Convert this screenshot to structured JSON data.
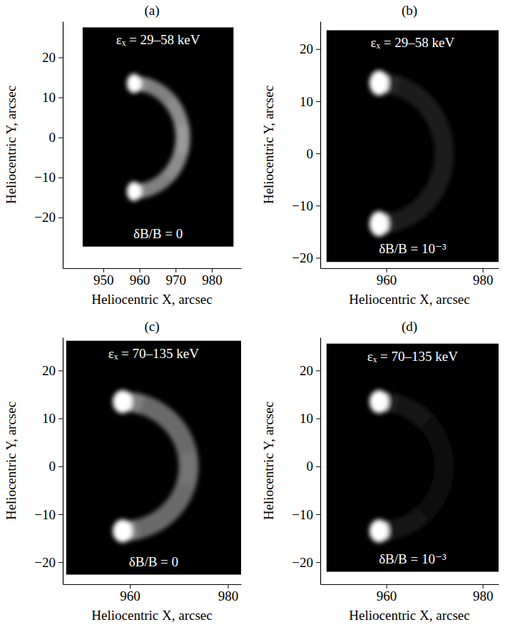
{
  "chart_data": [
    {
      "type": "image",
      "title": "(a)",
      "x_label": "Heliocentric X, arcsec",
      "y_label": "Heliocentric Y, arcsec",
      "annotations": [
        "εₓ = 29–58 keV",
        "δB/B = 0"
      ],
      "xlim": [
        938.8,
        988.1
      ],
      "xticks": [
        950,
        960,
        970,
        980
      ],
      "ylim": [
        -32.7,
        29.0
      ],
      "yticks": [
        -20,
        -10,
        0,
        10,
        20
      ],
      "extent": {
        "x": [
          944.3,
          986.0
        ],
        "y": [
          -27.3,
          27.5
        ]
      },
      "zlim": [
        0,
        1
      ],
      "loop": {
        "center_x": 958.5,
        "center_y": 0,
        "radius": 13.5,
        "width": 4
      },
      "profile": {
        "angle": [
          -90,
          -60,
          -30,
          0,
          30,
          60,
          90
        ],
        "brightness": [
          0.55,
          0.5,
          0.55,
          0.6,
          0.55,
          0.5,
          0.55
        ]
      },
      "sources": [
        {
          "x": 958.5,
          "y": 13.5,
          "brightness": 1
        },
        {
          "x": 958.5,
          "y": -13.5,
          "brightness": 1
        }
      ]
    },
    {
      "type": "image",
      "title": "(b)",
      "x_label": "Heliocentric X, arcsec",
      "y_label": "Heliocentric Y, arcsec",
      "annotations": [
        "εₓ = 29–58 keV",
        "δB/B = 10⁻³"
      ],
      "xlim": [
        946.3,
        983.3
      ],
      "xticks": [
        960,
        980
      ],
      "ylim": [
        -22.0,
        25.3
      ],
      "yticks": [
        -20,
        -10,
        0,
        10,
        20
      ],
      "extent": {
        "x": [
          947.6,
          983.3
        ],
        "y": [
          -20.8,
          23.6
        ]
      },
      "zlim": [
        0,
        1
      ],
      "loop": {
        "center_x": 958.5,
        "center_y": 0,
        "radius": 13.5,
        "width": 4
      },
      "profile": {
        "angle": [
          -90,
          -60,
          -30,
          0,
          30,
          60,
          90
        ],
        "brightness": [
          0.15,
          0.12,
          0.12,
          0.12,
          0.12,
          0.12,
          0.15
        ]
      },
      "sources": [
        {
          "x": 958.5,
          "y": 13.5,
          "brightness": 1
        },
        {
          "x": 958.5,
          "y": -13.5,
          "brightness": 1
        }
      ]
    },
    {
      "type": "image",
      "title": "(c)",
      "x_label": "Heliocentric X, arcsec",
      "y_label": "Heliocentric Y, arcsec",
      "annotations": [
        "εₓ = 70–135 keV",
        "δB/B = 0"
      ],
      "xlim": [
        946.3,
        982.7
      ],
      "xticks": [
        960,
        980
      ],
      "ylim": [
        -24.6,
        26.9
      ],
      "yticks": [
        -20,
        -10,
        0,
        10,
        20
      ],
      "extent": {
        "x": [
          947.0,
          982.7
        ],
        "y": [
          -22.6,
          26.2
        ]
      },
      "zlim": [
        0,
        1
      ],
      "loop": {
        "center_x": 958.5,
        "center_y": 0,
        "radius": 13.5,
        "width": 4
      },
      "profile": {
        "angle": [
          -90,
          -60,
          -30,
          0,
          30,
          60,
          90
        ],
        "brightness": [
          0.5,
          0.42,
          0.42,
          0.45,
          0.42,
          0.42,
          0.5
        ]
      },
      "sources": [
        {
          "x": 958.5,
          "y": 13.5,
          "brightness": 1
        },
        {
          "x": 958.5,
          "y": -13.5,
          "brightness": 1
        }
      ]
    },
    {
      "type": "image",
      "title": "(d)",
      "x_label": "Heliocentric X, arcsec",
      "y_label": "Heliocentric Y, arcsec",
      "annotations": [
        "εₓ = 70–135 keV",
        "δB/B = 10⁻³"
      ],
      "xlim": [
        946.3,
        983.3
      ],
      "xticks": [
        960,
        980
      ],
      "ylim": [
        -24.6,
        26.9
      ],
      "yticks": [
        -20,
        -10,
        0,
        10,
        20
      ],
      "extent": {
        "x": [
          947.6,
          983.3
        ],
        "y": [
          -22.0,
          25.6
        ]
      },
      "zlim": [
        0,
        1
      ],
      "loop": {
        "center_x": 958.5,
        "center_y": 0,
        "radius": 13.5,
        "width": 4
      },
      "profile": {
        "angle": [
          -90,
          -60,
          -30,
          0,
          30,
          60,
          90
        ],
        "brightness": [
          0.1,
          0.07,
          0.06,
          0.06,
          0.06,
          0.07,
          0.1
        ]
      },
      "sources": [
        {
          "x": 958.5,
          "y": 13.5,
          "brightness": 1
        },
        {
          "x": 958.5,
          "y": -13.5,
          "brightness": 1
        }
      ]
    }
  ]
}
